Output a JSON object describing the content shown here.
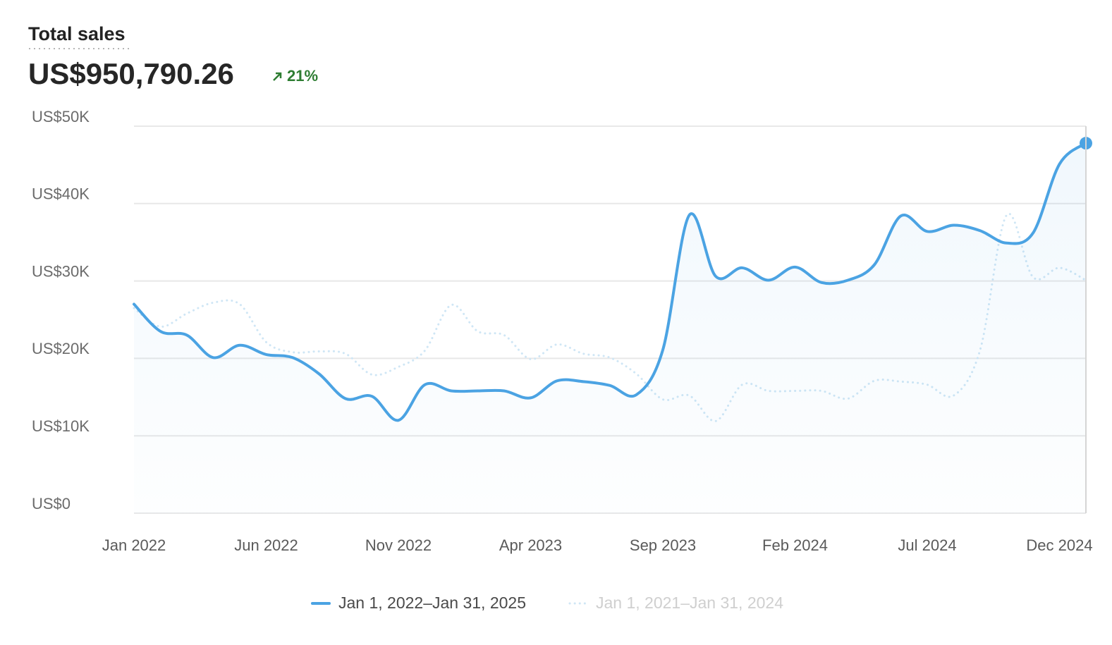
{
  "chart_data": {
    "type": "line",
    "title": "Total sales",
    "total": "US$950,790.26",
    "change": "21%",
    "categories": [
      "Jan 2022",
      null,
      null,
      null,
      null,
      "Jun 2022",
      null,
      null,
      null,
      null,
      "Nov 2022",
      null,
      null,
      null,
      null,
      "Apr 2023",
      null,
      null,
      null,
      null,
      "Sep 2023",
      null,
      null,
      null,
      null,
      "Feb 2024",
      null,
      null,
      null,
      null,
      "Jul 2024",
      null,
      null,
      null,
      null,
      "Dec 2024",
      null
    ],
    "series": [
      {
        "name": "Jan 1, 2022–Jan 31, 2025",
        "color": "#4ba3e3",
        "style": "solid",
        "values": [
          27000,
          23500,
          23000,
          20100,
          21700,
          20500,
          20100,
          18000,
          14800,
          15100,
          12000,
          16600,
          15800,
          15800,
          15800,
          14900,
          17100,
          17000,
          16500,
          15300,
          21100,
          38500,
          30600,
          31700,
          30100,
          31800,
          29800,
          30100,
          32100,
          38400,
          36400,
          37200,
          36500,
          34900,
          36200,
          45100,
          47800
        ]
      },
      {
        "name": "Jan 1, 2021–Jan 31, 2024",
        "color": "#cfe6f5",
        "style": "dotted",
        "values": [
          26500,
          24100,
          25800,
          27200,
          27000,
          22100,
          20800,
          20900,
          20600,
          17900,
          18900,
          21000,
          26900,
          23500,
          23000,
          19900,
          21800,
          20600,
          20100,
          18000,
          14700,
          15200,
          11900,
          16600,
          15800,
          15800,
          15800,
          14800,
          17100,
          17000,
          16600,
          15200,
          21100,
          38500,
          30500,
          31700,
          30100
        ]
      }
    ],
    "ylim": [
      0,
      50000
    ],
    "yticks": [
      {
        "value": 0,
        "label": "US$0"
      },
      {
        "value": 10000,
        "label": "US$10K"
      },
      {
        "value": 20000,
        "label": "US$20K"
      },
      {
        "value": 30000,
        "label": "US$30K"
      },
      {
        "value": 40000,
        "label": "US$40K"
      },
      {
        "value": 50000,
        "label": "US$50K"
      }
    ],
    "grid": true
  }
}
